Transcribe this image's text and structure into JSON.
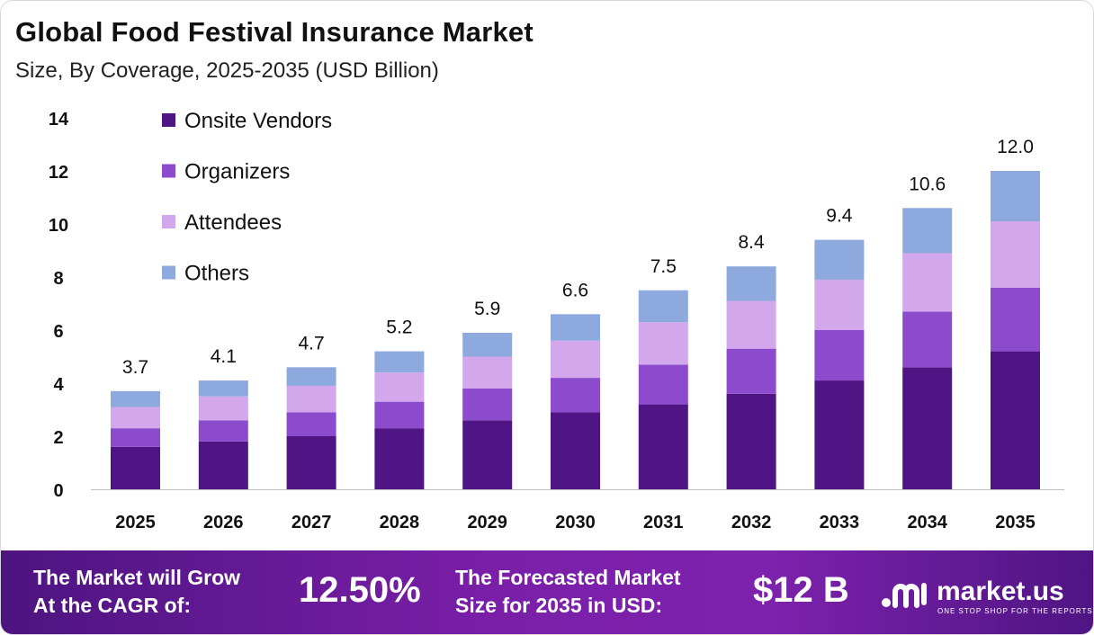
{
  "header": {
    "title": "Global Food Festival Insurance Market",
    "subtitle": "Size, By Coverage, 2025-2035 (USD Billion)"
  },
  "chart_data": {
    "type": "bar",
    "stacked": true,
    "categories": [
      "2025",
      "2026",
      "2027",
      "2028",
      "2029",
      "2030",
      "2031",
      "2032",
      "2033",
      "2034",
      "2035"
    ],
    "series": [
      {
        "name": "Onsite Vendors",
        "color": "#4f1584",
        "values": [
          1.6,
          1.8,
          2.0,
          2.3,
          2.6,
          2.9,
          3.2,
          3.6,
          4.1,
          4.6,
          5.2
        ]
      },
      {
        "name": "Organizers",
        "color": "#8b4bcc",
        "values": [
          0.7,
          0.8,
          0.9,
          1.0,
          1.2,
          1.3,
          1.5,
          1.7,
          1.9,
          2.1,
          2.4
        ]
      },
      {
        "name": "Attendees",
        "color": "#d2a7ec",
        "values": [
          0.8,
          0.9,
          1.0,
          1.1,
          1.2,
          1.4,
          1.6,
          1.8,
          1.9,
          2.2,
          2.5
        ]
      },
      {
        "name": "Others",
        "color": "#8ea9dd",
        "values": [
          0.6,
          0.6,
          0.7,
          0.8,
          0.9,
          1.0,
          1.2,
          1.3,
          1.5,
          1.7,
          1.9
        ]
      }
    ],
    "totals": [
      "3.7",
      "4.1",
      "4.7",
      "5.2",
      "5.9",
      "6.6",
      "7.5",
      "8.4",
      "9.4",
      "10.6",
      "12.0"
    ],
    "yticks": [
      "0",
      "2",
      "4",
      "6",
      "8",
      "10",
      "12",
      "14"
    ],
    "ylim": [
      0,
      14
    ],
    "legend_position": "top-left",
    "grid": false
  },
  "banner": {
    "cagr_label_line1": "The Market will Grow",
    "cagr_label_line2": "At the CAGR of:",
    "cagr_value": "12.50%",
    "forecast_label_line1": "The Forecasted Market",
    "forecast_label_line2": "Size for 2035 in USD:",
    "forecast_value": "$12 B",
    "logo_name": "market.us",
    "logo_tagline": "ONE STOP SHOP FOR THE REPORTS"
  }
}
